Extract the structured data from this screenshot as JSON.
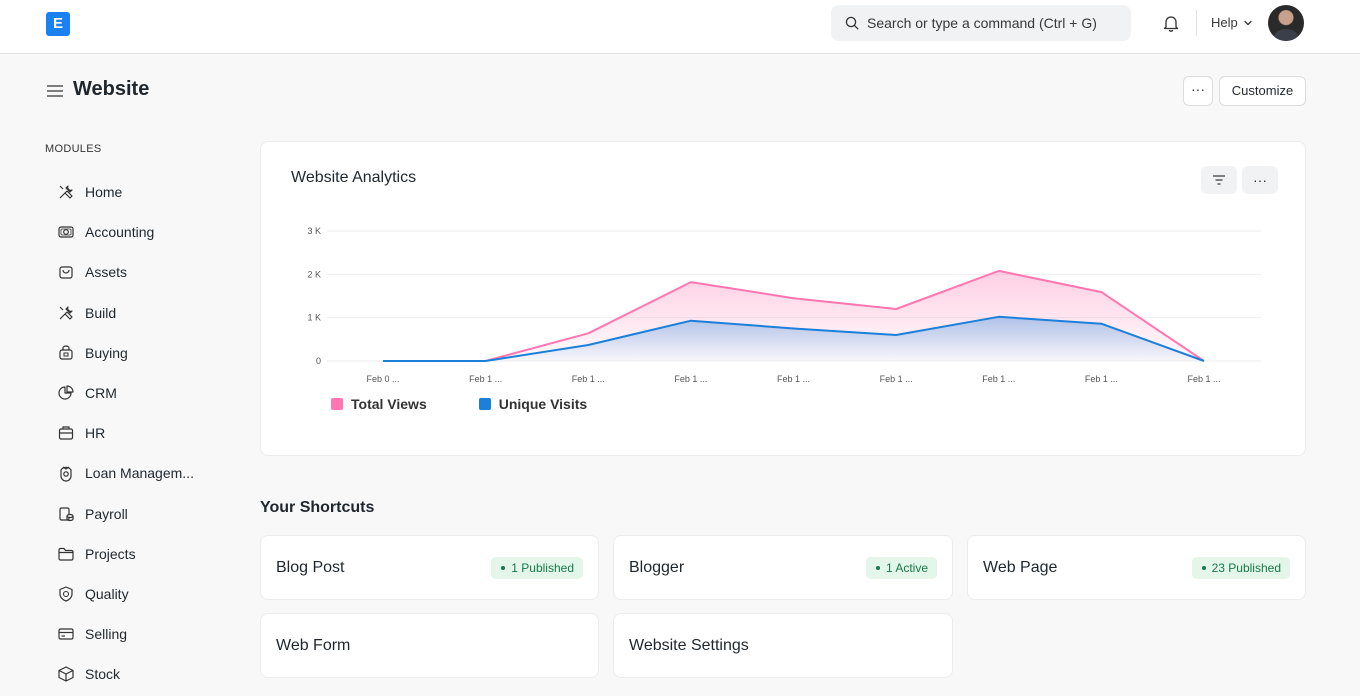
{
  "navbar": {
    "logo_letter": "E",
    "search_placeholder": "Search or type a command (Ctrl + G)",
    "help_label": "Help"
  },
  "page": {
    "title": "Website",
    "more_label": "···",
    "customize_label": "Customize"
  },
  "sidebar": {
    "heading": "MODULES",
    "items": [
      {
        "label": "Home",
        "icon": "tools-icon"
      },
      {
        "label": "Accounting",
        "icon": "money-icon"
      },
      {
        "label": "Assets",
        "icon": "bag-icon"
      },
      {
        "label": "Build",
        "icon": "build-icon"
      },
      {
        "label": "Buying",
        "icon": "cart-icon"
      },
      {
        "label": "CRM",
        "icon": "pie-icon"
      },
      {
        "label": "HR",
        "icon": "briefcase-icon"
      },
      {
        "label": "Loan Managem...",
        "icon": "loan-icon"
      },
      {
        "label": "Payroll",
        "icon": "payroll-icon"
      },
      {
        "label": "Projects",
        "icon": "folder-icon"
      },
      {
        "label": "Quality",
        "icon": "shield-icon"
      },
      {
        "label": "Selling",
        "icon": "card-icon"
      },
      {
        "label": "Stock",
        "icon": "box-icon"
      }
    ]
  },
  "analytics": {
    "title": "Website Analytics",
    "more_label": "···",
    "chart_data": {
      "type": "area",
      "categories": [
        "Feb 0 ...",
        "Feb 1 ...",
        "Feb 1 ...",
        "Feb 1 ...",
        "Feb 1 ...",
        "Feb 1 ...",
        "Feb 1 ...",
        "Feb 1 ...",
        "Feb 1 ..."
      ],
      "y_ticks": [
        "0",
        "1 K",
        "2 K",
        "3 K"
      ],
      "ylim": [
        0,
        3000
      ],
      "grid": true,
      "legend_position": "bottom-left",
      "series": [
        {
          "name": "Total Views",
          "color": "#ff76b0",
          "values": [
            0,
            0,
            640,
            1820,
            1450,
            1200,
            2080,
            1590,
            0
          ]
        },
        {
          "name": "Unique Visits",
          "color": "#1b80d9",
          "values": [
            0,
            0,
            370,
            930,
            750,
            600,
            1020,
            860,
            0
          ]
        }
      ]
    }
  },
  "shortcuts": {
    "title": "Your Shortcuts",
    "items": [
      {
        "label": "Blog Post",
        "badge": "1 Published"
      },
      {
        "label": "Blogger",
        "badge": "1 Active"
      },
      {
        "label": "Web Page",
        "badge": "23 Published"
      },
      {
        "label": "Web Form",
        "badge": ""
      },
      {
        "label": "Website Settings",
        "badge": ""
      }
    ]
  },
  "colors": {
    "brand": "#1b80f0",
    "badge_bg": "#e4f5e9",
    "badge_text": "#16794c"
  }
}
